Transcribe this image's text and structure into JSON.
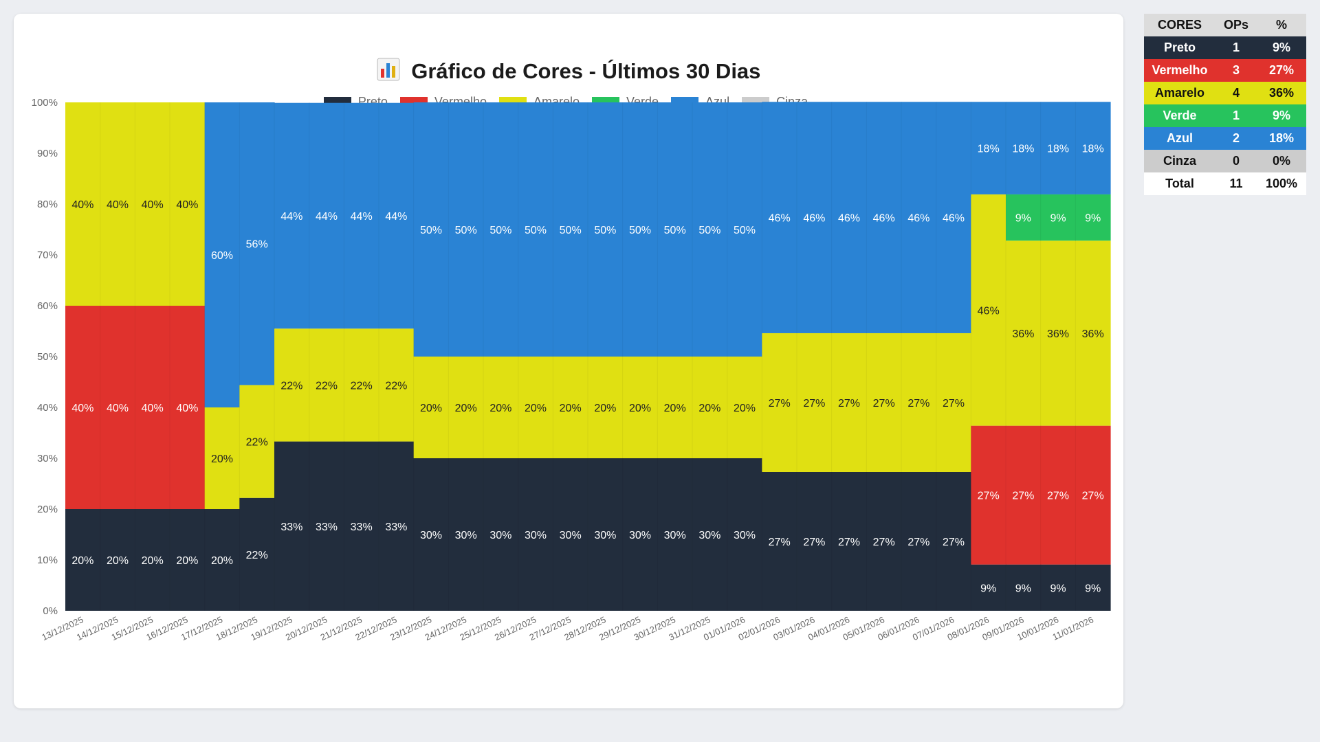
{
  "colors": {
    "Preto": "#222d3d",
    "Vermelho": "#e0322d",
    "Amarelo": "#e0e012",
    "Verde": "#27c35d",
    "Azul": "#2a83d4",
    "Cinza": "#cccccc"
  },
  "chart_data": {
    "type": "bar",
    "stacked": true,
    "title": "Gráfico de Cores - Últimos 30 Dias",
    "title_icon": "bar-chart-icon",
    "legend": [
      "Preto",
      "Vermelho",
      "Amarelo",
      "Verde",
      "Azul",
      "Cinza"
    ],
    "legend_position": "top",
    "ylim": [
      0,
      100
    ],
    "yticks": [
      "0%",
      "10%",
      "20%",
      "30%",
      "40%",
      "50%",
      "60%",
      "70%",
      "80%",
      "90%",
      "100%"
    ],
    "categories": [
      "13/12/2025",
      "14/12/2025",
      "15/12/2025",
      "16/12/2025",
      "17/12/2025",
      "18/12/2025",
      "19/12/2025",
      "20/12/2025",
      "21/12/2025",
      "22/12/2025",
      "23/12/2025",
      "24/12/2025",
      "25/12/2025",
      "26/12/2025",
      "27/12/2025",
      "28/12/2025",
      "29/12/2025",
      "30/12/2025",
      "31/12/2025",
      "01/01/2026",
      "02/01/2026",
      "03/01/2026",
      "04/01/2026",
      "05/01/2026",
      "06/01/2026",
      "07/01/2026",
      "08/01/2026",
      "09/01/2026",
      "10/01/2026",
      "11/01/2026"
    ],
    "series": [
      {
        "name": "Preto",
        "values": [
          20,
          20,
          20,
          20,
          20,
          22.2,
          33.3,
          33.3,
          33.3,
          33.3,
          30,
          30,
          30,
          30,
          30,
          30,
          30,
          30,
          30,
          30,
          27.3,
          27.3,
          27.3,
          27.3,
          27.3,
          27.3,
          9.1,
          9.1,
          9.1,
          9.1
        ]
      },
      {
        "name": "Vermelho",
        "values": [
          40,
          40,
          40,
          40,
          0,
          0,
          0,
          0,
          0,
          0,
          0,
          0,
          0,
          0,
          0,
          0,
          0,
          0,
          0,
          0,
          0,
          0,
          0,
          0,
          0,
          0,
          27.3,
          27.3,
          27.3,
          27.3
        ]
      },
      {
        "name": "Amarelo",
        "values": [
          40,
          40,
          40,
          40,
          20,
          22.2,
          22.2,
          22.2,
          22.2,
          22.2,
          20,
          20,
          20,
          20,
          20,
          20,
          20,
          20,
          20,
          20,
          27.3,
          27.3,
          27.3,
          27.3,
          27.3,
          27.3,
          45.5,
          36.4,
          36.4,
          36.4
        ]
      },
      {
        "name": "Verde",
        "values": [
          0,
          0,
          0,
          0,
          0,
          0,
          0,
          0,
          0,
          0,
          0,
          0,
          0,
          0,
          0,
          0,
          0,
          0,
          0,
          0,
          0,
          0,
          0,
          0,
          0,
          0,
          0,
          9.1,
          9.1,
          9.1
        ]
      },
      {
        "name": "Azul",
        "values": [
          0,
          0,
          0,
          0,
          60,
          55.6,
          44.4,
          44.4,
          44.4,
          44.4,
          50,
          50,
          50,
          50,
          50,
          50,
          50,
          50,
          50,
          50,
          45.5,
          45.5,
          45.5,
          45.5,
          45.5,
          45.5,
          18.2,
          18.2,
          18.2,
          18.2
        ]
      },
      {
        "name": "Cinza",
        "values": [
          0,
          0,
          0,
          0,
          0,
          0,
          0,
          0,
          0,
          0,
          0,
          0,
          0,
          0,
          0,
          0,
          0,
          0,
          0,
          0,
          0,
          0,
          0,
          0,
          0,
          0,
          0,
          0,
          0,
          0
        ]
      }
    ]
  },
  "table": {
    "headers": [
      "CORES",
      "OPs",
      "%"
    ],
    "rows": [
      {
        "name": "Preto",
        "ops": "1",
        "pct": "9%",
        "bg": "#222d3d",
        "fg": "#ffffff"
      },
      {
        "name": "Vermelho",
        "ops": "3",
        "pct": "27%",
        "bg": "#e0322d",
        "fg": "#ffffff"
      },
      {
        "name": "Amarelo",
        "ops": "4",
        "pct": "36%",
        "bg": "#e0e012",
        "fg": "#111111"
      },
      {
        "name": "Verde",
        "ops": "1",
        "pct": "9%",
        "bg": "#27c35d",
        "fg": "#ffffff"
      },
      {
        "name": "Azul",
        "ops": "2",
        "pct": "18%",
        "bg": "#2a83d4",
        "fg": "#ffffff"
      },
      {
        "name": "Cinza",
        "ops": "0",
        "pct": "0%",
        "bg": "#cccccc",
        "fg": "#111111"
      },
      {
        "name": "Total",
        "ops": "11",
        "pct": "100%",
        "bg": "#ffffff",
        "fg": "#111111"
      }
    ]
  }
}
